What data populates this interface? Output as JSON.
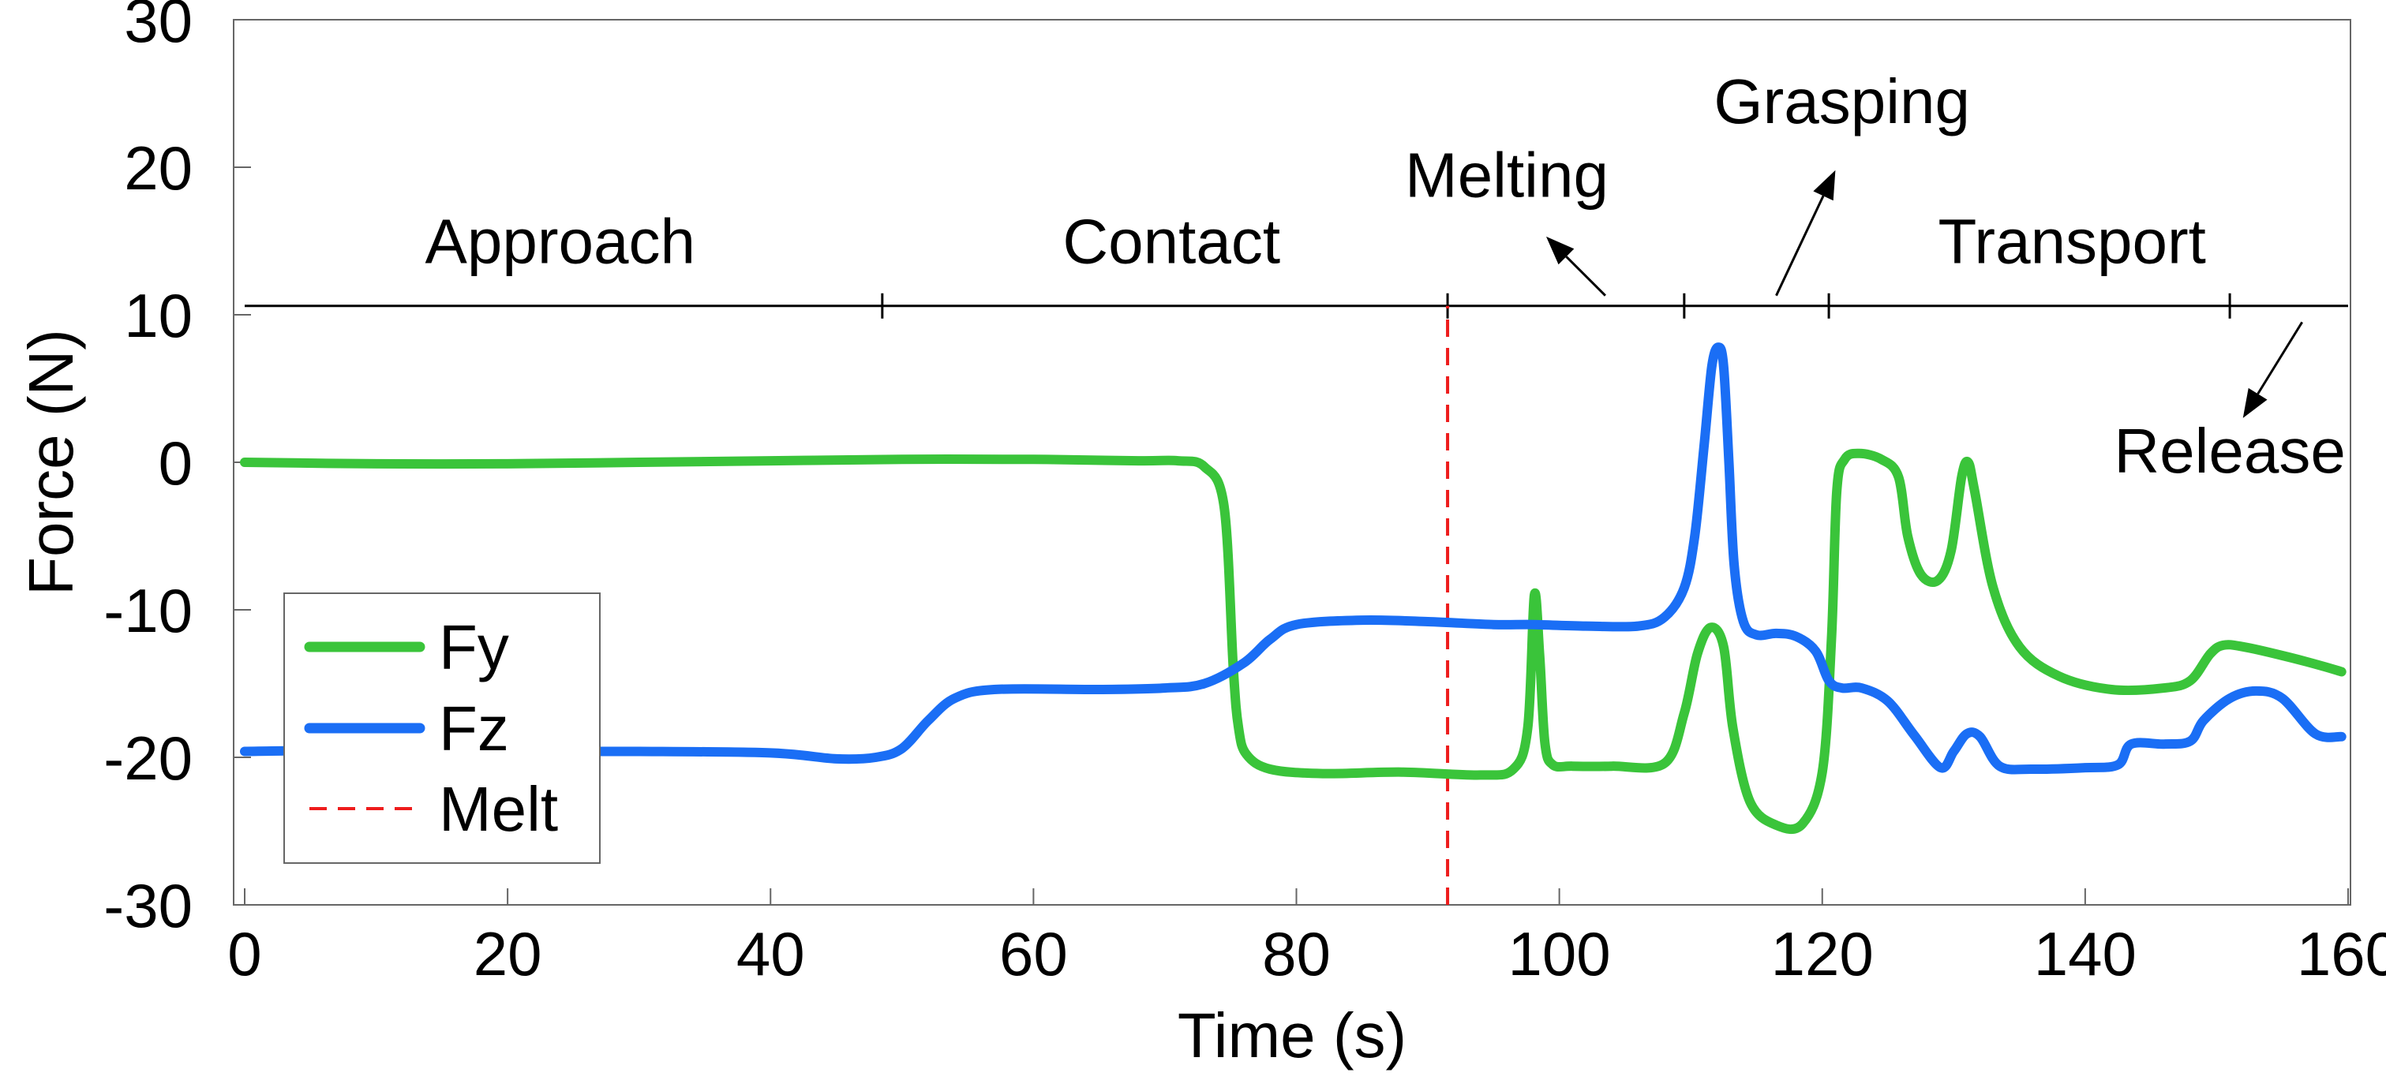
{
  "chart_data": {
    "type": "line",
    "title": "",
    "xlabel": "Time (s)",
    "ylabel": "Force (N)",
    "xlim": [
      0,
      160
    ],
    "ylim": [
      -30,
      30
    ],
    "xticks": [
      0,
      20,
      40,
      60,
      80,
      100,
      120,
      140,
      160
    ],
    "yticks": [
      -30,
      -20,
      -10,
      0,
      10,
      20,
      30
    ],
    "xtick_labels": [
      "0",
      "20",
      "40",
      "60",
      "80",
      "100",
      "120",
      "140",
      "160"
    ],
    "ytick_labels": [
      "-30",
      "-20",
      "-10",
      "0",
      "10",
      "20",
      "30"
    ],
    "grid": false,
    "legend_position": "bottom-left",
    "series": [
      {
        "name": "Fy",
        "color": "#3ac43a",
        "x": [
          0,
          10,
          20,
          30,
          40,
          50,
          60,
          68,
          71,
          73,
          74.5,
          75.2,
          75.6,
          76.2,
          78,
          82,
          88,
          94,
          96.5,
          97.6,
          98.1,
          98.5,
          98.9,
          99.5,
          101,
          104,
          108,
          109.5,
          110.5,
          111.5,
          112.5,
          113.2,
          114.5,
          116.5,
          118.5,
          120,
          120.7,
          121.1,
          121.7,
          122.8,
          124.5,
          125.8,
          126.5,
          127.5,
          128.8,
          129.8,
          130.6,
          131.1,
          131.6,
          133,
          135,
          138,
          142,
          146,
          148,
          149.5,
          150.5,
          152,
          155,
          158,
          159.5
        ],
        "values": [
          0,
          -0.1,
          -0.1,
          0,
          0.1,
          0.2,
          0.2,
          0.1,
          0.1,
          -0.3,
          -3,
          -14,
          -18,
          -19.8,
          -20.8,
          -21.1,
          -21,
          -21.2,
          -20.8,
          -18,
          -9,
          -13,
          -19,
          -20.5,
          -20.6,
          -20.6,
          -20.4,
          -17,
          -13,
          -11.2,
          -12.5,
          -18,
          -23,
          -24.6,
          -24.5,
          -21,
          -12,
          -2,
          0.2,
          0.6,
          0.2,
          -1,
          -5,
          -7.6,
          -8,
          -6,
          -1,
          0,
          -2,
          -8.5,
          -12.5,
          -14.5,
          -15.4,
          -15.3,
          -14.8,
          -13,
          -12.4,
          -12.5,
          -13.1,
          -13.8,
          -14.2
        ]
      },
      {
        "name": "Fz",
        "color": "#1a6ef5",
        "x": [
          0,
          10,
          20,
          30,
          40,
          45,
          48,
          50,
          52,
          54,
          57,
          65,
          70,
          73,
          76,
          78,
          80,
          85,
          90,
          95,
          98,
          102,
          106,
          108,
          109.5,
          110.3,
          111,
          111.6,
          112.1,
          112.5,
          112.9,
          113.3,
          114,
          115,
          116.5,
          118,
          119.5,
          120.5,
          121.5,
          123,
          125,
          127,
          129,
          130,
          131,
          132,
          133.5,
          136,
          140,
          142.5,
          143.5,
          146,
          148,
          149,
          151,
          153,
          155,
          157.5,
          159.5
        ],
        "values": [
          -19.6,
          -19.5,
          -19.6,
          -19.6,
          -19.7,
          -20.1,
          -20,
          -19.4,
          -17.5,
          -16,
          -15.4,
          -15.4,
          -15.3,
          -15,
          -13.6,
          -12,
          -11,
          -10.7,
          -10.8,
          -11,
          -11,
          -11.1,
          -11.1,
          -10.5,
          -8.5,
          -5,
          1,
          6.5,
          7.8,
          6.5,
          0,
          -7,
          -10.8,
          -11.7,
          -11.6,
          -11.8,
          -12.8,
          -14.8,
          -15.3,
          -15.3,
          -16.2,
          -18.5,
          -20.7,
          -19.6,
          -18.4,
          -18.6,
          -20.6,
          -20.8,
          -20.7,
          -20.5,
          -19.1,
          -19.1,
          -18.9,
          -17.5,
          -16,
          -15.5,
          -16,
          -18.4,
          -18.6
        ]
      },
      {
        "name": "Melt",
        "color": "#ee1c1c",
        "style": "dashed",
        "x": [
          91.5,
          91.5
        ],
        "values": [
          -30,
          10.6
        ]
      }
    ],
    "phases": {
      "timeline_y": 10.6,
      "boundaries": [
        0,
        48.5,
        91.5,
        109.5,
        120.5,
        151,
        160
      ],
      "labels": [
        {
          "text": "Approach",
          "x": 24,
          "y": 13.5
        },
        {
          "text": "Contact",
          "x": 70.5,
          "y": 13.5
        },
        {
          "text": "Melting",
          "x": 96,
          "y": 18
        },
        {
          "text": "Grasping",
          "x": 121.5,
          "y": 23
        },
        {
          "text": "Transport",
          "x": 139,
          "y": 13.5
        },
        {
          "text": "Release",
          "x": 151,
          "y": -0.7
        }
      ],
      "arrows": [
        {
          "from": [
            103.5,
            11.3
          ],
          "to": [
            99,
            15.3
          ]
        },
        {
          "from": [
            116.5,
            11.3
          ],
          "to": [
            121,
            19.8
          ]
        },
        {
          "from": [
            156.5,
            9.5
          ],
          "to": [
            152,
            3
          ]
        }
      ]
    }
  }
}
